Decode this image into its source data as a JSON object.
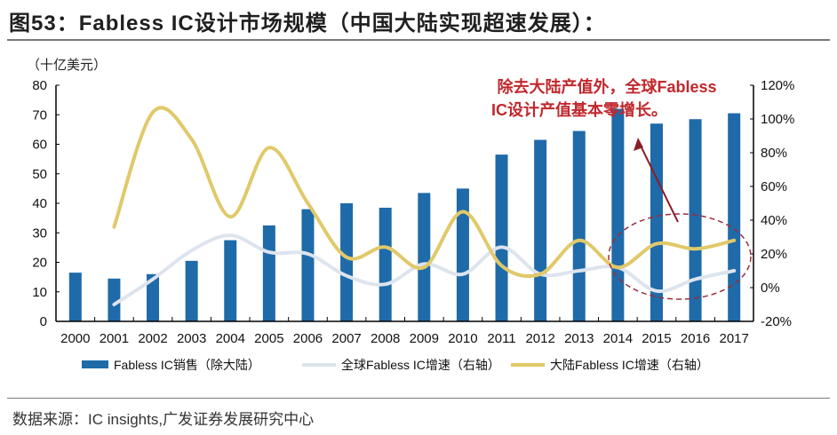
{
  "title": "图53：Fabless IC设计市场规模（中国大陆实现超速发展）：",
  "source": "数据来源：IC insights,广发证券发展研究中心",
  "chart_data": {
    "type": "bar+line",
    "y_left_unit": "（十亿美元）",
    "categories": [
      "2000",
      "2001",
      "2002",
      "2003",
      "2004",
      "2005",
      "2006",
      "2007",
      "2008",
      "2009",
      "2010",
      "2011",
      "2012",
      "2013",
      "2014",
      "2015",
      "2016",
      "2017"
    ],
    "ylim_left": [
      0,
      80
    ],
    "yticks_left": [
      "0",
      "10",
      "20",
      "30",
      "40",
      "50",
      "60",
      "70",
      "80"
    ],
    "ylim_right": [
      -20,
      120
    ],
    "yticks_right": [
      "-20%",
      "0%",
      "20%",
      "40%",
      "60%",
      "80%",
      "100%",
      "120%"
    ],
    "series": [
      {
        "name": "Fabless IC销售（除大陆）",
        "type": "bar",
        "axis": "left",
        "color": "#1f6aa8",
        "values": [
          16.5,
          14.5,
          16,
          20.5,
          27.5,
          32.5,
          38,
          40,
          38.5,
          43.5,
          45,
          56.5,
          61.5,
          64.5,
          72,
          67,
          68.5,
          70.5
        ]
      },
      {
        "name": "全球Fabless IC增速（右轴）",
        "type": "line",
        "axis": "right",
        "color": "#dde4ee",
        "values": [
          null,
          -10,
          5,
          22,
          31,
          21,
          20,
          7,
          2,
          14,
          8,
          24,
          8,
          10,
          12,
          -2,
          5,
          10
        ]
      },
      {
        "name": "大陆Fabless IC增速（右轴）",
        "type": "line",
        "axis": "right",
        "color": "#e0c96a",
        "values": [
          null,
          36,
          104,
          88,
          42,
          83,
          50,
          18,
          24,
          12,
          45,
          13,
          8,
          28,
          12,
          26,
          23,
          28
        ]
      }
    ],
    "annotation": [
      "除去大陆产值外，全球Fabless",
      "IC设计产值基本零增长。"
    ],
    "annotation_color": "#c0282d",
    "legend_position": "bottom",
    "grid": false
  }
}
